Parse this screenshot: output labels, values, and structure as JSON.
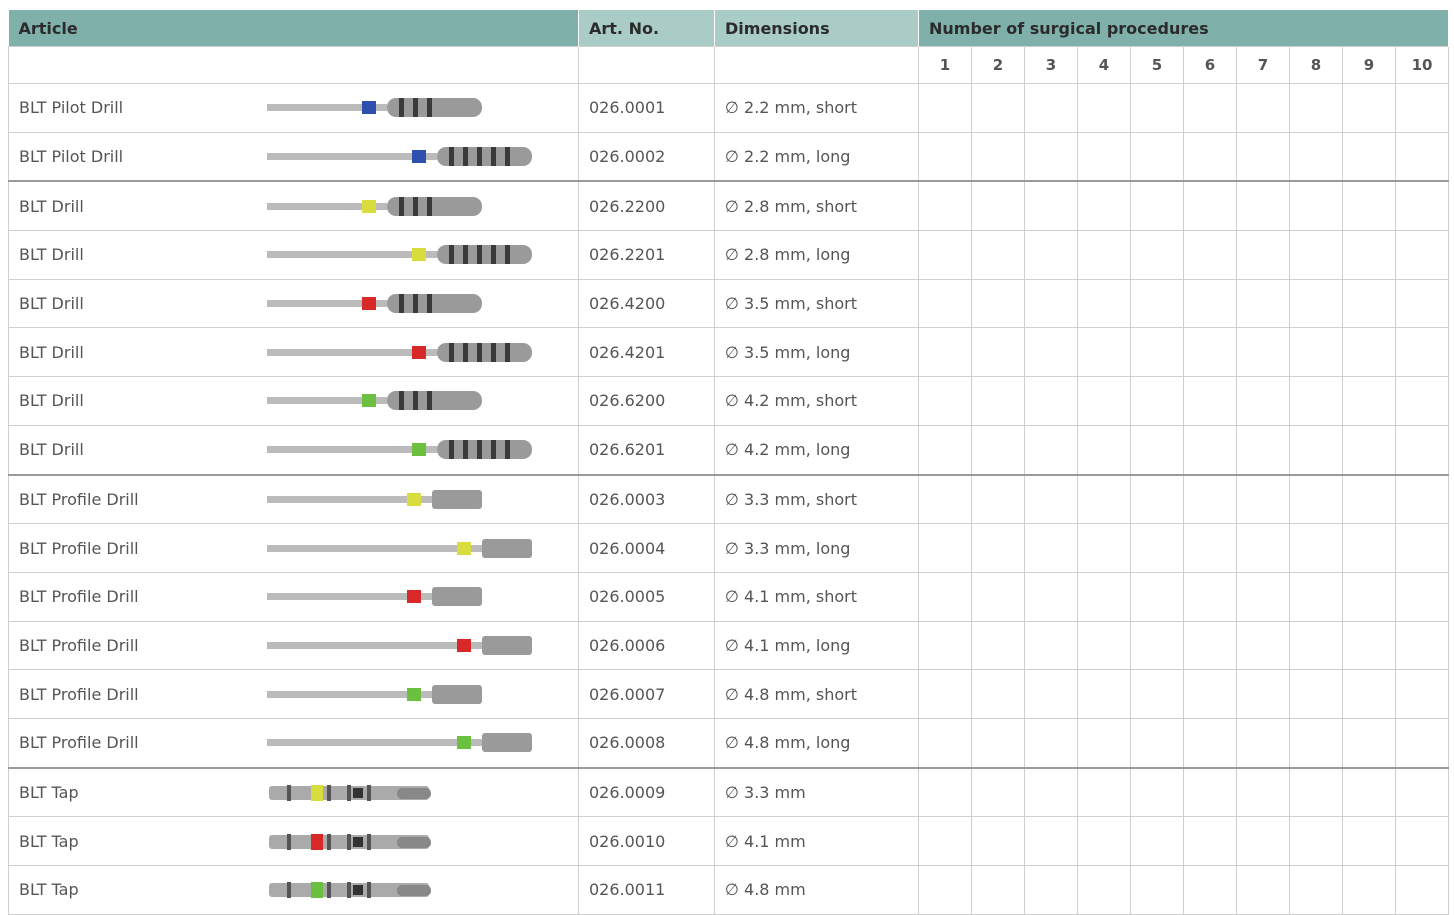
{
  "table": {
    "header": [
      "Article",
      "Art. No.",
      "Dimensions",
      "Number of surgical procedures"
    ],
    "procedure_numbers": [
      "1",
      "2",
      "3",
      "4",
      "5",
      "6",
      "7",
      "8",
      "9",
      "10"
    ],
    "rows": [
      {
        "article": "BLT Pilot Drill",
        "art_no": "026.0001",
        "dimensions": "∅ 2.2 mm, short",
        "color": "#2f4fb0"
      },
      {
        "article": "BLT Pilot Drill",
        "art_no": "026.0002",
        "dimensions": "∅ 2.2 mm, long",
        "color": "#2f4fb0"
      },
      {
        "article": "BLT Drill",
        "art_no": "026.2200",
        "dimensions": "∅ 2.8 mm, short",
        "color": "#d8dc3c"
      },
      {
        "article": "BLT Drill",
        "art_no": "026.2201",
        "dimensions": "∅ 2.8 mm, long",
        "color": "#d8dc3c"
      },
      {
        "article": "BLT Drill",
        "art_no": "026.4200",
        "dimensions": "∅ 3.5 mm, short",
        "color": "#d82828"
      },
      {
        "article": "BLT Drill",
        "art_no": "026.4201",
        "dimensions": "∅ 3.5 mm, long",
        "color": "#d82828"
      },
      {
        "article": "BLT Drill",
        "art_no": "026.6200",
        "dimensions": "∅ 4.2 mm, short",
        "color": "#6cc040"
      },
      {
        "article": "BLT Drill",
        "art_no": "026.6201",
        "dimensions": "∅ 4.2 mm, long",
        "color": "#6cc040"
      },
      {
        "article": "BLT Profile Drill",
        "art_no": "026.0003",
        "dimensions": "∅ 3.3 mm, short",
        "color": "#d8dc3c"
      },
      {
        "article": "BLT Profile Drill",
        "art_no": "026.0004",
        "dimensions": "∅ 3.3 mm, long",
        "color": "#d8dc3c"
      },
      {
        "article": "BLT Profile Drill",
        "art_no": "026.0005",
        "dimensions": "∅ 4.1 mm, short",
        "color": "#d82828"
      },
      {
        "article": "BLT Profile Drill",
        "art_no": "026.0006",
        "dimensions": "∅ 4.1 mm, long",
        "color": "#d82828"
      },
      {
        "article": "BLT Profile Drill",
        "art_no": "026.0007",
        "dimensions": "∅ 4.8 mm, short",
        "color": "#6cc040"
      },
      {
        "article": "BLT Profile Drill",
        "art_no": "026.0008",
        "dimensions": "∅ 4.8 mm, long",
        "color": "#6cc040"
      },
      {
        "article": "BLT Tap",
        "art_no": "026.0009",
        "dimensions": "∅ 3.3 mm",
        "color": "#d8dc3c"
      },
      {
        "article": "BLT Tap",
        "art_no": "026.0010",
        "dimensions": "∅ 4.1 mm",
        "color": "#d82828"
      },
      {
        "article": "BLT Tap",
        "art_no": "026.0011",
        "dimensions": "∅ 4.8 mm",
        "color": "#6cc040"
      }
    ]
  }
}
